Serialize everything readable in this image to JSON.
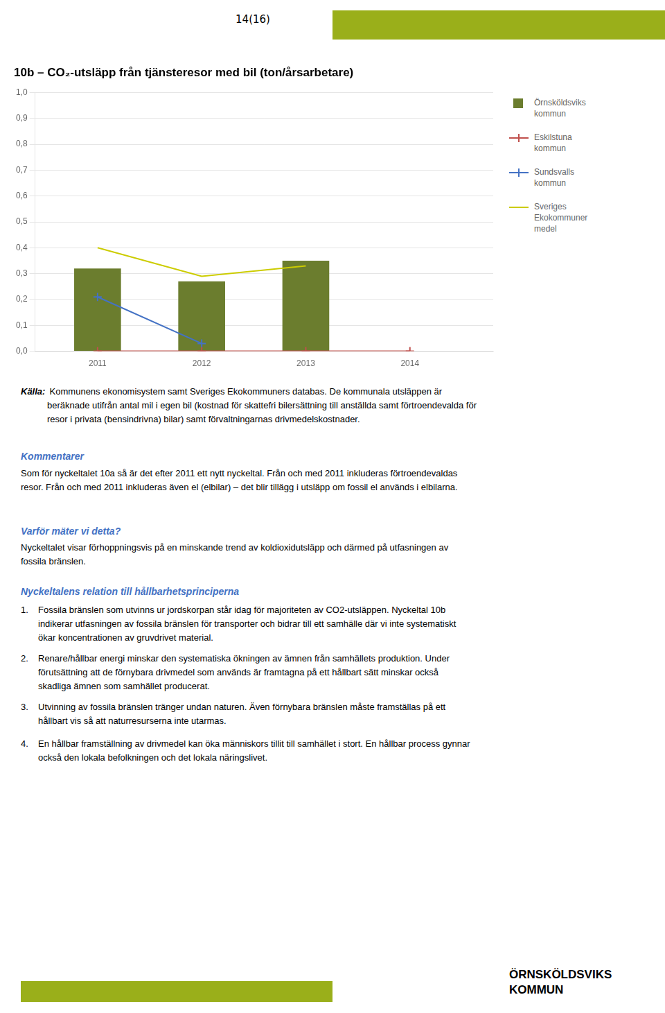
{
  "chart_data": {
    "type": "bar",
    "title": "10b – CO₂-utsläpp från tjänsteresor med bil (ton/årsarbetare)",
    "x": [
      2011,
      2012,
      2013,
      2014
    ],
    "series": [
      {
        "name": "Örnsköldsviks\nkommun",
        "type": "bar",
        "color": "#6B7D2E",
        "values": [
          0.32,
          0.27,
          0.35,
          null
        ]
      },
      {
        "name": "Eskilstuna\nkommun",
        "type": "line",
        "color": "#C0504D",
        "marker": "plus",
        "line_style": "solid",
        "values": [
          0.0,
          0.0,
          0.0,
          0.0
        ]
      },
      {
        "name": "Sundsvalls\nkommun",
        "type": "line",
        "color": "#4472C4",
        "marker": "plus",
        "line_style": "solid",
        "values": [
          0.21,
          0.03,
          null,
          null
        ]
      },
      {
        "name": "Sveriges\nEkokommuner\nmedel",
        "type": "line",
        "color": "#CCCC00",
        "marker": "none",
        "line_style": "solid",
        "values": [
          0.4,
          0.29,
          0.33,
          null
        ]
      }
    ],
    "xlim": [
      2010.4,
      2014.8
    ],
    "xticks": [
      2011,
      2012,
      2013,
      2014
    ],
    "ylim": [
      0.0,
      1.0
    ],
    "yticks": [
      {
        "value": 0.0,
        "label": "0,0"
      },
      {
        "value": 0.1,
        "label": "0,1"
      },
      {
        "value": 0.2,
        "label": "0,2"
      },
      {
        "value": 0.3,
        "label": "0,3"
      },
      {
        "value": 0.4,
        "label": "0,4"
      },
      {
        "value": 0.5,
        "label": "0,5"
      },
      {
        "value": 0.6,
        "label": "0,6"
      },
      {
        "value": 0.7,
        "label": "0,7"
      },
      {
        "value": 0.8,
        "label": "0,8"
      },
      {
        "value": 0.9,
        "label": "0,9"
      },
      {
        "value": 1.0,
        "label": "1,0"
      }
    ],
    "grid": true,
    "legend": "right",
    "annotations": [
      "14(16)",
      "Källa:",
      " Kommunens ekonomisystem samt Sveriges Ekokommuners databas. De kommunala utsläppen är\nberäknade utifrån antal mil i egen bil (kostnad för skattefri bilersättning till anställda samt förtroendevalda för\nresor i privata (bensindrivna) bilar) samt förvaltningarnas drivmedelskostnader.",
      "Kommentarer",
      "Som för nyckeltalet 10a så är det efter 2011 ett nytt nyckeltal. Från och med 2011 inkluderas förtroendevaldas\nresor. Från och med 2011 inkluderas även el (elbilar) – det blir tillägg i utsläpp om fossil el används i elbilarna.",
      "Varför mäter vi detta?",
      "Nyckeltalet visar förhoppningsvis på en minskande trend av koldioxidutsläpp och därmed på utfasningen av\nfossila bränslen.",
      "Nyckeltalens relation till hållbarhetsprinciperna",
      "1.",
      "Fossila bränslen som utvinns ur jordskorpan står idag för majoriteten av CO2-utsläppen. Nyckeltal 10b\nindikerar utfasningen av fossila bränslen för transporter och bidrar till ett samhälle där vi inte systematiskt\nökar koncentrationen av gruvdrivet material.",
      "2.",
      "Renare/hållbar energi minskar den systematiska ökningen av ämnen från samhällets produktion. Under\nförutsättning att de förnybara drivmedel som används är framtagna på ett hållbart sätt minskar också\nskadliga ämnen som samhället producerat.",
      "3.",
      "Utvinning av fossila bränslen tränger undan naturen. Även förnybara bränslen måste framställas på ett\nhållbart vis så att naturresurserna inte utarmas.",
      "4.",
      "En hållbar framställning av drivmedel kan öka människors tillit till samhället i stort. En hållbar process gynnar\nockså den lokala befolkningen och det lokala näringslivet.",
      "ÖRNSKÖLDSVIKS\nKOMMUN"
    ]
  }
}
